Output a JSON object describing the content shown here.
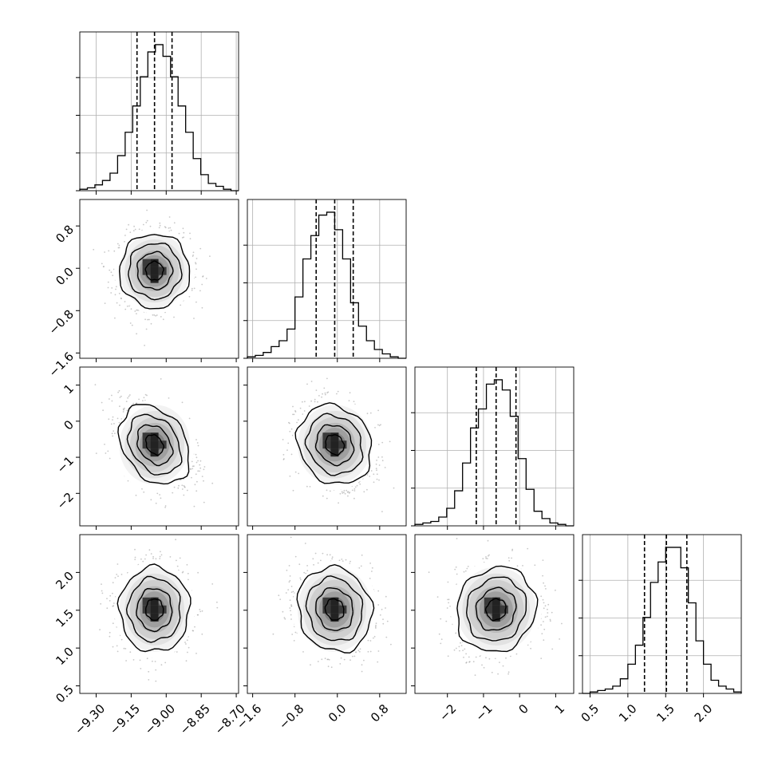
{
  "chart_data": {
    "type": "corner",
    "parameters": [
      {
        "range": [
          -9.37,
          -8.69
        ],
        "ticks": [
          -9.3,
          -9.15,
          -9.0,
          -8.85,
          -8.7
        ],
        "tick_labels": [
          "−9.30",
          "−9.15",
          "−9.00",
          "−8.85",
          "−8.70"
        ],
        "quantiles": [
          -9.125,
          -9.05,
          -8.975
        ],
        "hist": [
          1,
          2,
          4,
          7,
          12,
          24,
          40,
          58,
          78,
          95,
          100,
          92,
          78,
          58,
          40,
          22,
          11,
          5,
          3,
          1,
          0
        ]
      },
      {
        "range": [
          -1.7,
          1.3
        ],
        "ticks": [
          -1.6,
          -0.8,
          0.0,
          0.8
        ],
        "tick_labels": [
          "−1.6",
          "−0.8",
          "0.0",
          "0.8"
        ],
        "quantiles": [
          -0.4,
          -0.05,
          0.3
        ],
        "hist": [
          1,
          2,
          4,
          8,
          12,
          20,
          42,
          68,
          84,
          98,
          100,
          88,
          68,
          38,
          22,
          12,
          6,
          3,
          1,
          0
        ]
      },
      {
        "range": [
          -2.9,
          1.5
        ],
        "ticks": [
          -2,
          -1,
          0,
          1
        ],
        "tick_labels": [
          "−2",
          "−1",
          "0",
          "1"
        ],
        "quantiles": [
          -1.2,
          -0.65,
          -0.1
        ],
        "hist": [
          1,
          2,
          3,
          6,
          12,
          24,
          43,
          67,
          80,
          97,
          100,
          93,
          75,
          46,
          25,
          10,
          5,
          2,
          1,
          0
        ]
      },
      {
        "range": [
          0.4,
          2.5
        ],
        "ticks": [
          0.5,
          1.0,
          1.5,
          2.0
        ],
        "tick_labels": [
          "0.5",
          "1.0",
          "1.5",
          "2.0"
        ],
        "quantiles": [
          1.22,
          1.51,
          1.78
        ],
        "hist": [
          0,
          1,
          2,
          3,
          5,
          10,
          20,
          33,
          52,
          76,
          90,
          100,
          100,
          86,
          62,
          36,
          20,
          9,
          5,
          3,
          1
        ]
      }
    ],
    "pairs": [
      {
        "x": 0,
        "y": 1,
        "center": [
          -9.05,
          -0.05
        ],
        "sigma": [
          0.075,
          0.35
        ],
        "rho": 0.0
      },
      {
        "x": 0,
        "y": 2,
        "center": [
          -9.05,
          -0.65
        ],
        "sigma": [
          0.075,
          0.55
        ],
        "rho": -0.3
      },
      {
        "x": 1,
        "y": 2,
        "center": [
          -0.05,
          -0.65
        ],
        "sigma": [
          0.35,
          0.55
        ],
        "rho": -0.15
      },
      {
        "x": 0,
        "y": 3,
        "center": [
          -9.05,
          1.51
        ],
        "sigma": [
          0.075,
          0.28
        ],
        "rho": 0.0
      },
      {
        "x": 1,
        "y": 3,
        "center": [
          -0.05,
          1.51
        ],
        "sigma": [
          0.35,
          0.28
        ],
        "rho": -0.1
      },
      {
        "x": 2,
        "y": 3,
        "center": [
          -0.65,
          1.51
        ],
        "sigma": [
          0.55,
          0.28
        ],
        "rho": 0.1
      }
    ],
    "contour_levels": [
      0.5,
      1.0,
      1.5,
      2.0
    ],
    "grid": true,
    "colors": {
      "line": "#000000",
      "grid": "#b0b0b0",
      "points": "#9a9a9a",
      "density_dark": "#333333"
    }
  }
}
